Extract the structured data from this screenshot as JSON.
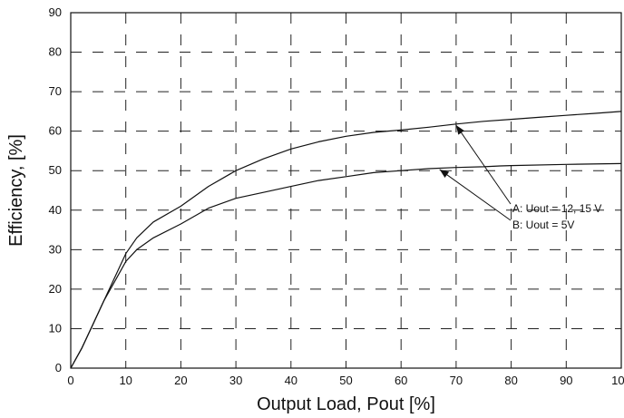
{
  "chart_data": {
    "type": "line",
    "title": "",
    "xlabel": "Output Load, Pout [%]",
    "ylabel": "Efficiency, [%]",
    "xlim": [
      0,
      100
    ],
    "ylim": [
      0,
      90
    ],
    "xticks": [
      "0",
      "10",
      "20",
      "30",
      "40",
      "50",
      "60",
      "70",
      "80",
      "90",
      "100"
    ],
    "yticks": [
      "0",
      "10",
      "20",
      "30",
      "40",
      "50",
      "60",
      "70",
      "80",
      "90"
    ],
    "grid": "dashed",
    "series": [
      {
        "name": "A: Uout = 12, 15 V",
        "x": [
          0,
          2,
          4,
          6,
          8,
          10,
          12,
          15,
          20,
          25,
          30,
          35,
          40,
          45,
          50,
          55,
          60,
          65,
          70,
          75,
          80,
          85,
          90,
          95,
          100
        ],
        "y": [
          0,
          5,
          11,
          17,
          23,
          29,
          33,
          37,
          41,
          46,
          50,
          53,
          55.5,
          57.3,
          58.7,
          59.7,
          60.3,
          61,
          61.8,
          62.5,
          63,
          63.5,
          64,
          64.5,
          65
        ]
      },
      {
        "name": "B: Uout = 5V",
        "x": [
          0,
          2,
          4,
          6,
          8,
          10,
          12,
          15,
          20,
          25,
          30,
          35,
          40,
          45,
          50,
          55,
          60,
          65,
          70,
          75,
          78,
          80,
          90,
          100
        ],
        "y": [
          0,
          5,
          11,
          17,
          22,
          27,
          30,
          33,
          36.5,
          40.5,
          43,
          44.5,
          46,
          47.5,
          48.5,
          49.5,
          50,
          50.5,
          50.8,
          51,
          51.2,
          51.3,
          51.6,
          51.8
        ]
      }
    ],
    "annotations": [
      {
        "text": "A: Uout = 12, 15 V",
        "points_to": [
          70,
          61.5
        ]
      },
      {
        "text": "B: Uout = 5V",
        "points_to": [
          67,
          50.3
        ]
      }
    ]
  }
}
